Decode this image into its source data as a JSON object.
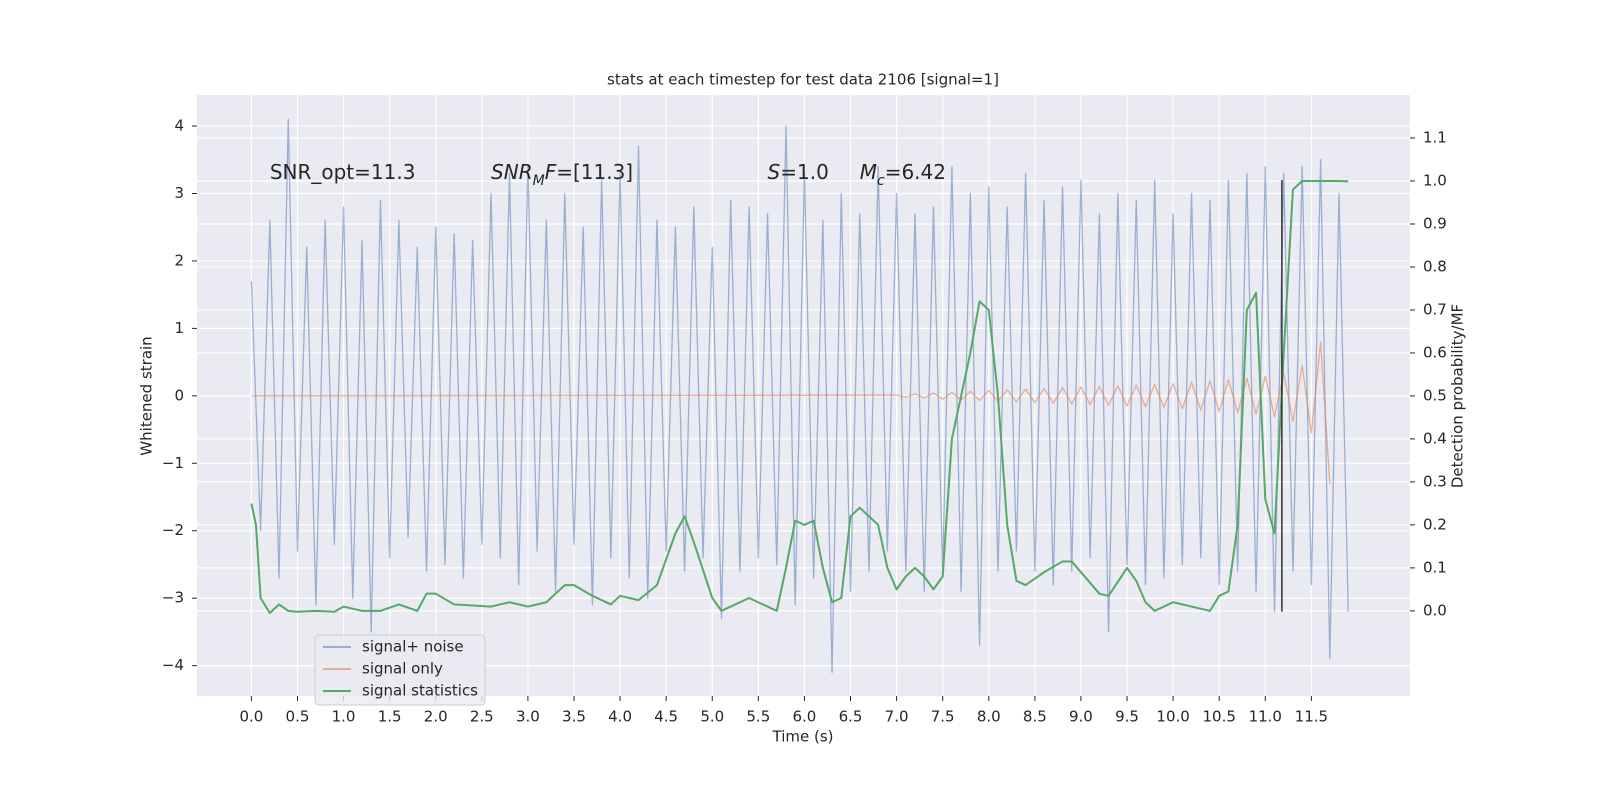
{
  "chart_data": {
    "type": "line",
    "title": "stats at each timestep for test data 2106 [signal=1]",
    "x_label": "Time (s)",
    "y_label": "Whitened strain",
    "y2_label": "Detection probability/MF",
    "xlim": [
      -0.59,
      12.57
    ],
    "ylim": [
      -4.45,
      4.46
    ],
    "y2lim": [
      -0.198,
      1.2
    ],
    "xticks": [
      {
        "value": 0,
        "label": "0.0"
      },
      0.5,
      {
        "value": 1,
        "label": "1.0"
      },
      1.5,
      {
        "value": 2,
        "label": "2.0"
      },
      2.5,
      {
        "value": 3,
        "label": "3.0"
      },
      3.5,
      {
        "value": 4,
        "label": "4.0"
      },
      4.5,
      {
        "value": 5,
        "label": "5.0"
      },
      5.5,
      {
        "value": 6,
        "label": "6.0"
      },
      6.5,
      {
        "value": 7,
        "label": "7.0"
      },
      7.5,
      {
        "value": 8,
        "label": "8.0"
      },
      8.5,
      {
        "value": 9,
        "label": "9.0"
      },
      9.5,
      {
        "value": 10,
        "label": "10.0"
      },
      10.5,
      {
        "value": 11,
        "label": "11.0"
      },
      11.5
    ],
    "yticks": [
      {
        "value": -4,
        "label": "−4"
      },
      {
        "value": -3,
        "label": "−3"
      },
      {
        "value": -2,
        "label": "−2"
      },
      {
        "value": -1,
        "label": "−1"
      },
      0,
      1,
      2,
      3,
      4
    ],
    "y2ticks": [
      {
        "value": 0,
        "label": "0.0"
      },
      0.1,
      0.2,
      0.3,
      0.4,
      0.5,
      0.6,
      0.7,
      0.8,
      0.9,
      {
        "value": 1,
        "label": "1.0"
      },
      1.1
    ],
    "grid": true,
    "legend": "lower left",
    "series": [
      {
        "name": "signal+ noise",
        "color": "#4c72b0",
        "opacity": 0.5,
        "x": [
          0,
          0.1,
          0.2,
          0.3,
          0.4,
          0.5,
          0.6,
          0.7,
          0.8,
          0.9,
          1,
          1.1,
          1.2,
          1.3,
          1.4,
          1.5,
          1.6,
          1.7,
          1.8,
          1.9,
          2,
          2.1,
          2.2,
          2.3,
          2.4,
          2.5,
          2.6,
          2.7,
          2.8,
          2.9,
          3,
          3.1,
          3.2,
          3.3,
          3.4,
          3.5,
          3.6,
          3.7,
          3.8,
          3.9,
          4,
          4.1,
          4.2,
          4.3,
          4.4,
          4.5,
          4.6,
          4.7,
          4.8,
          4.9,
          5,
          5.1,
          5.2,
          5.3,
          5.4,
          5.5,
          5.6,
          5.7,
          5.8,
          5.9,
          6,
          6.1,
          6.2,
          6.3,
          6.4,
          6.5,
          6.6,
          6.7,
          6.8,
          6.9,
          7,
          7.1,
          7.2,
          7.3,
          7.4,
          7.5,
          7.6,
          7.7,
          7.8,
          7.9,
          8,
          8.1,
          8.2,
          8.3,
          8.4,
          8.5,
          8.6,
          8.7,
          8.8,
          8.9,
          9,
          9.1,
          9.2,
          9.3,
          9.4,
          9.5,
          9.6,
          9.7,
          9.8,
          9.9,
          10,
          10.1,
          10.2,
          10.3,
          10.4,
          10.5,
          10.6,
          10.7,
          10.8,
          10.9,
          11,
          11.1,
          11.2,
          11.3,
          11.4,
          11.5,
          11.6,
          11.7,
          11.8,
          11.9
        ],
        "values": [
          1.7,
          -2.0,
          2.6,
          -2.7,
          4.1,
          -2.3,
          2.2,
          -3.1,
          2.6,
          -2.2,
          2.8,
          -3.0,
          2.3,
          -3.5,
          2.9,
          -2.4,
          2.6,
          -2.1,
          2.2,
          -2.6,
          2.5,
          -2.5,
          2.4,
          -2.7,
          2.3,
          -2.2,
          3.0,
          -2.4,
          3.3,
          -2.8,
          3.4,
          -2.3,
          2.6,
          -2.9,
          3.0,
          -2.2,
          2.5,
          -3.1,
          3.2,
          -2.4,
          3.3,
          -2.7,
          3.7,
          -3.0,
          2.6,
          -2.3,
          2.5,
          -2.6,
          2.8,
          -2.4,
          2.2,
          -3.3,
          2.9,
          -2.6,
          2.8,
          -2.4,
          2.7,
          -2.5,
          4.0,
          -3.1,
          3.3,
          -2.7,
          2.6,
          -4.1,
          3.0,
          -2.9,
          2.7,
          -2.6,
          3.4,
          -2.3,
          3.0,
          -2.6,
          2.7,
          -2.9,
          2.8,
          -2.6,
          3.4,
          -2.9,
          3.0,
          -3.7,
          3.1,
          -2.6,
          2.8,
          -2.3,
          3.3,
          -2.6,
          2.9,
          -2.8,
          3.1,
          -2.6,
          3.2,
          -2.4,
          2.7,
          -3.5,
          3.0,
          -2.5,
          2.9,
          -2.8,
          3.2,
          -2.7,
          2.7,
          -2.5,
          3.0,
          -2.4,
          2.9,
          -2.8,
          3.2,
          -2.6,
          3.3,
          -2.9,
          3.4,
          -3.2,
          3.3,
          -2.6,
          3.4,
          -2.8,
          3.5,
          -3.9,
          3.0,
          -3.2
        ]
      },
      {
        "name": "signal only",
        "color": "#dd8452",
        "opacity": 0.6,
        "x": [
          0,
          7,
          7.1,
          7.2,
          7.3,
          7.4,
          7.5,
          7.6,
          7.7,
          7.8,
          7.9,
          8,
          8.1,
          8.2,
          8.3,
          8.4,
          8.5,
          8.6,
          8.7,
          8.8,
          8.9,
          9,
          9.1,
          9.2,
          9.3,
          9.4,
          9.5,
          9.6,
          9.7,
          9.8,
          9.9,
          10,
          10.1,
          10.2,
          10.3,
          10.4,
          10.5,
          10.6,
          10.7,
          10.8,
          10.9,
          11,
          11.1,
          11.2,
          11.3,
          11.4,
          11.5,
          11.6,
          11.7
        ],
        "values": [
          0,
          0.01,
          -0.02,
          0.03,
          -0.03,
          0.04,
          -0.05,
          0.05,
          -0.06,
          0.07,
          -0.07,
          0.08,
          -0.08,
          0.09,
          -0.09,
          0.1,
          -0.1,
          0.11,
          -0.11,
          0.12,
          -0.12,
          0.13,
          -0.13,
          0.14,
          -0.14,
          0.15,
          -0.15,
          0.16,
          -0.16,
          0.17,
          -0.17,
          0.18,
          -0.19,
          0.2,
          -0.21,
          0.22,
          -0.23,
          0.24,
          -0.25,
          0.26,
          -0.27,
          0.29,
          -0.31,
          0.34,
          -0.38,
          0.45,
          -0.55,
          0.8,
          -1.3
        ]
      },
      {
        "name": "signal statistics",
        "color": "#55a868",
        "axis": "y2",
        "x": [
          0,
          0.05,
          0.1,
          0.2,
          0.3,
          0.4,
          0.5,
          0.7,
          0.9,
          1,
          1.2,
          1.4,
          1.6,
          1.8,
          1.9,
          2,
          2.2,
          2.6,
          2.8,
          3,
          3.2,
          3.4,
          3.5,
          3.7,
          3.9,
          4,
          4.2,
          4.4,
          4.6,
          4.7,
          4.8,
          5,
          5.1,
          5.2,
          5.4,
          5.6,
          5.7,
          5.8,
          5.9,
          6,
          6.1,
          6.2,
          6.3,
          6.4,
          6.5,
          6.6,
          6.7,
          6.8,
          6.9,
          7,
          7.1,
          7.2,
          7.3,
          7.4,
          7.5,
          7.6,
          7.7,
          7.8,
          7.9,
          8,
          8.1,
          8.2,
          8.3,
          8.4,
          8.6,
          8.8,
          8.9,
          9,
          9.2,
          9.3,
          9.5,
          9.6,
          9.7,
          9.8,
          10,
          10.2,
          10.4,
          10.5,
          10.6,
          10.7,
          10.8,
          10.9,
          11,
          11.1,
          11.2,
          11.3,
          11.4,
          11.6,
          11.8,
          11.9
        ],
        "values": [
          0.25,
          0.2,
          0.03,
          -0.005,
          0.015,
          0,
          -0.002,
          0,
          -0.002,
          0.01,
          0,
          0,
          0.015,
          0,
          0.04,
          0.04,
          0.015,
          0.01,
          0.02,
          0.01,
          0.02,
          0.06,
          0.06,
          0.035,
          0.015,
          0.035,
          0.025,
          0.06,
          0.18,
          0.22,
          0.16,
          0.03,
          0,
          0.01,
          0.03,
          0.01,
          0,
          0.1,
          0.21,
          0.2,
          0.21,
          0.1,
          0.02,
          0.03,
          0.22,
          0.24,
          0.22,
          0.2,
          0.1,
          0.05,
          0.08,
          0.1,
          0.08,
          0.05,
          0.08,
          0.4,
          0.5,
          0.6,
          0.72,
          0.7,
          0.5,
          0.2,
          0.07,
          0.06,
          0.09,
          0.115,
          0.115,
          0.09,
          0.04,
          0.035,
          0.1,
          0.07,
          0.02,
          0,
          0.02,
          0.01,
          0,
          0.035,
          0.045,
          0.2,
          0.7,
          0.74,
          0.26,
          0.18,
          0.6,
          0.98,
          1,
          1,
          1,
          0.999
        ]
      }
    ],
    "vlines": [
      {
        "x": 11.18,
        "ymin": -3.2,
        "ymax": 3.2,
        "color": "#333333"
      }
    ],
    "annotations": [
      {
        "x": 0.2,
        "y": 3.3,
        "parts": [
          {
            "text": "SNR_opt=11.3",
            "italic": false,
            "sub": false
          }
        ]
      },
      {
        "x": 2.6,
        "y": 3.3,
        "parts": [
          {
            "text": "SNR",
            "italic": true,
            "sub": false
          },
          {
            "text": "M",
            "italic": true,
            "sub": true
          },
          {
            "text": "F",
            "italic": true,
            "sub": false
          },
          {
            "text": "=[11.3]",
            "italic": false,
            "sub": false
          }
        ]
      },
      {
        "x": 5.6,
        "y": 3.3,
        "parts": [
          {
            "text": "S",
            "italic": true,
            "sub": false
          },
          {
            "text": "=1.0",
            "italic": false,
            "sub": false
          }
        ]
      },
      {
        "x": 6.6,
        "y": 3.3,
        "parts": [
          {
            "text": "M",
            "italic": true,
            "sub": false
          },
          {
            "text": "c",
            "italic": true,
            "sub": true
          },
          {
            "text": "=6.42",
            "italic": false,
            "sub": false
          }
        ]
      }
    ]
  }
}
